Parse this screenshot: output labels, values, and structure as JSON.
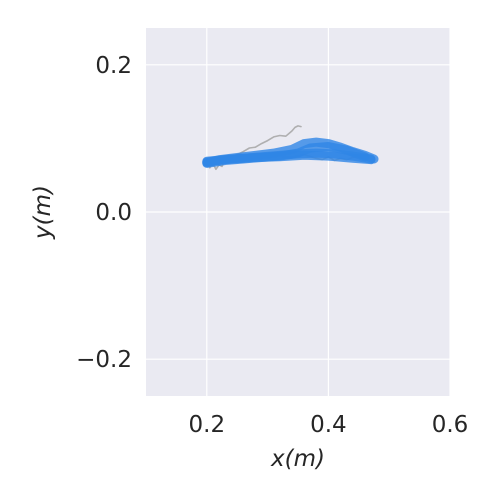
{
  "chart_data": {
    "type": "line",
    "title": "",
    "xlabel": "x(m)",
    "ylabel": "y(m)",
    "xlim": [
      0.1,
      0.6
    ],
    "ylim": [
      -0.25,
      0.25
    ],
    "xticks": [
      0.2,
      0.4,
      0.6
    ],
    "yticks": [
      -0.2,
      0.0,
      0.2
    ],
    "xtick_labels": [
      "0.2",
      "0.4",
      "0.6"
    ],
    "ytick_labels": [
      "−0.2",
      "0.0",
      "0.2"
    ],
    "grid": true,
    "background_color": "#eaeaf2",
    "grid_color": "#ffffff",
    "series": [
      {
        "color": "#a9a9a9",
        "x": [
          0.2,
          0.205,
          0.21,
          0.215,
          0.22,
          0.225,
          0.23,
          0.24,
          0.25,
          0.26,
          0.27,
          0.28,
          0.29,
          0.3,
          0.31,
          0.32,
          0.33,
          0.34,
          0.345,
          0.35,
          0.355
        ],
        "y": [
          0.068,
          0.06,
          0.066,
          0.058,
          0.064,
          0.062,
          0.07,
          0.073,
          0.078,
          0.082,
          0.087,
          0.088,
          0.093,
          0.097,
          0.102,
          0.104,
          0.103,
          0.11,
          0.115,
          0.117,
          0.116
        ]
      },
      {
        "color": "#a9a9a9",
        "x": [
          0.3,
          0.32,
          0.34,
          0.36,
          0.38,
          0.39,
          0.4,
          0.41,
          0.42,
          0.43,
          0.44,
          0.45
        ],
        "y": [
          0.075,
          0.076,
          0.074,
          0.078,
          0.073,
          0.071,
          0.075,
          0.07,
          0.073,
          0.071,
          0.074,
          0.076
        ]
      },
      {
        "color": "#a9a9a9",
        "x": [
          0.2,
          0.21,
          0.22,
          0.24,
          0.26,
          0.28,
          0.3
        ],
        "y": [
          0.067,
          0.063,
          0.07,
          0.069,
          0.072,
          0.073,
          0.074
        ]
      },
      {
        "color": "#2f86e6",
        "x": [
          0.2,
          0.22,
          0.25,
          0.28,
          0.31,
          0.34,
          0.36,
          0.38,
          0.4,
          0.42,
          0.44,
          0.46,
          0.475
        ],
        "y": [
          0.067,
          0.071,
          0.074,
          0.077,
          0.08,
          0.085,
          0.093,
          0.095,
          0.093,
          0.088,
          0.082,
          0.077,
          0.072
        ]
      },
      {
        "color": "#2f86e6",
        "x": [
          0.2,
          0.23,
          0.26,
          0.29,
          0.32,
          0.35,
          0.38,
          0.41,
          0.44,
          0.47
        ],
        "y": [
          0.068,
          0.071,
          0.073,
          0.075,
          0.077,
          0.079,
          0.08,
          0.079,
          0.076,
          0.072
        ]
      },
      {
        "color": "#2f86e6",
        "x": [
          0.2,
          0.23,
          0.26,
          0.29,
          0.32,
          0.35,
          0.37,
          0.4,
          0.43,
          0.46
        ],
        "y": [
          0.066,
          0.07,
          0.072,
          0.074,
          0.076,
          0.08,
          0.087,
          0.089,
          0.084,
          0.075
        ]
      },
      {
        "color": "#2f86e6",
        "x": [
          0.2,
          0.24,
          0.28,
          0.32,
          0.36,
          0.4,
          0.44,
          0.47
        ],
        "y": [
          0.069,
          0.072,
          0.074,
          0.075,
          0.077,
          0.076,
          0.073,
          0.071
        ]
      }
    ]
  }
}
